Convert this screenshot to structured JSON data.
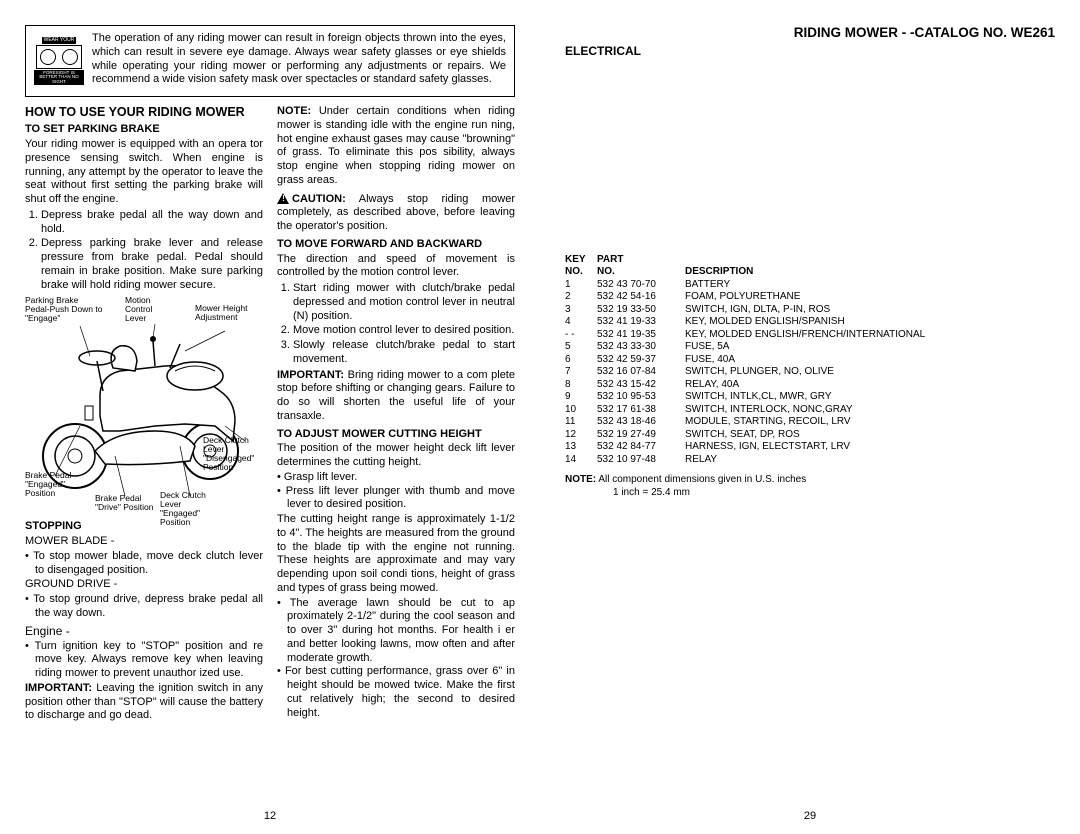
{
  "leftPage": {
    "warningBox": "The operation of any riding mower can  result in foreign objects thrown into the eyes, which can result in severe eye damage.  Always wear safety glasses or eye shields while operating your riding mower or performing any adjustments or repairs. We recommend a wide vision safety mask over spectacles or standard safety glasses.",
    "warningIconTop": "WEAR YOUR",
    "warningIconMid": "SAFETY GLASSES",
    "warningIconBot": "FORESIGHT IS BETTER THAN NO SIGHT",
    "col1": {
      "title": "HOW TO USE YOUR RIDING MOWER",
      "sub1": "To Set Parking Brake",
      "p1": "Your riding mower is equipped with an opera tor presence sensing switch.  When engine is running, any attempt by the operator to leave the seat without first setting the parking brake will shut off the engine.",
      "ol1_1": "Depress brake pedal all the way down and hold.",
      "ol1_2": "Depress parking brake lever and release pressure from brake pedal.  Pedal should remain in brake position.  Make sure parking brake will hold riding mower  secure.",
      "dlabels": {
        "l1": "Parking Brake Pedal-Push Down to \"Engage\"",
        "l2": "Motion Control Lever",
        "l3": "Mower Height Adjustment",
        "l4": "Deck Clutch Lever \"Disengaged\" Position",
        "l5": "Brake Pedal \"Engaged\" Position",
        "l6": "Brake Pedal \"Drive\" Position",
        "l7": "Deck Clutch Lever \"Engaged\" Position"
      },
      "sub2": "STOPPING",
      "p2": "MOWER BLADE -",
      "ul2_1": "To stop mower blade, move deck clutch lever to disengaged position.",
      "p3": "GROUND DRIVE -",
      "ul3_1": "To stop ground drive, depress brake pedal all the way down.",
      "sub3": "Engine -",
      "ul4_1": "Turn ignition key to \"STOP\" position and re move key.  Always remove key when leaving riding mower to prevent unauthor ized use.",
      "imp1": "IMPORTANT:",
      "imp1txt": "  Leaving the ignition switch in any position other than \"STOP\" will cause the battery to discharge and go dead."
    },
    "col2": {
      "notehead": "NOTE:",
      "note1": " Under certain conditions when riding mower is standing idle with the engine run ning, hot engine exhaust gases may cause \"browning\" of grass.  To eliminate this pos sibility, always stop engine when stopping riding mower on grass areas.",
      "cauthead": "CAUTION:",
      "caut1": "  Always stop riding mower completely, as described above, before leaving the operator's position.",
      "sub1": "To Move Forward And Backward",
      "p1": "The direction and speed of movement  is controlled by the motion control lever.",
      "ol1_1": "Start riding mower with clutch/brake pedal depressed and motion control lever in neutral (N) position.",
      "ol1_2": "Move motion control lever to desired position.",
      "ol1_3": "Slowly release clutch/brake pedal to start movement.",
      "imphead": "IMPORTANT:",
      "imp1": "  Bring riding mower to a com plete stop before shifting or changing gears.  Failure to do so will shorten the useful life of your transaxle.",
      "sub2": "To Adjust Mower Cutting Height",
      "p2": "The position of the mower height deck lift lever determines the cutting height.",
      "ul1_1": "Grasp lift lever.",
      "ul1_2": "Press lift lever plunger with thumb and move lever to desired position.",
      "p3": "The cutting  height range is approximately 1-1/2 to   4\".  The heights are measured from the ground to the blade tip with the engine not running.  These heights are approximate and may vary depending upon soil condi tions, height of grass and types of grass being mowed.",
      "ul2_1": "The average lawn should be cut to ap proximately 2-1/2\" during the cool season and to over 3\" during hot months.  For health i er and better looking lawns, mow often and after moderate growth.",
      "ul2_2": "For best cutting performance, grass over 6\" in height should be mowed twice.  Make the first cut relatively high; the second to desired height."
    },
    "pagenum": "12"
  },
  "rightPage": {
    "header1": "RIDING MOWER - -CATALOG NO.  WE261",
    "header2": "ELECTRICAL",
    "th": {
      "a": "KEY NO.",
      "b": "PART NO.",
      "c": "DESCRIPTION"
    },
    "rows": [
      {
        "a": "1",
        "b": "532 43 70-70",
        "c": "BATTERY"
      },
      {
        "a": "2",
        "b": "532 42 54-16",
        "c": "FOAM, POLYURETHANE"
      },
      {
        "a": "3",
        "b": "532 19 33-50",
        "c": "SWITCH, IGN, DLTA, P-IN, ROS"
      },
      {
        "a": "4",
        "b": "532 41 19-33",
        "c": "KEY, MOLDED ENGLISH/SPANISH"
      },
      {
        "a": "- -",
        "b": "532 41 19-35",
        "c": "KEY, MOLDED ENGLISH/FRENCH/INTERNATIONAL"
      },
      {
        "a": "5",
        "b": "532 43 33-30",
        "c": "FUSE, 5A"
      },
      {
        "a": "6",
        "b": "532 42 59-37",
        "c": "FUSE, 40A"
      },
      {
        "a": "7",
        "b": "532 16 07-84",
        "c": "SWITCH, PLUNGER, NO, OLIVE"
      },
      {
        "a": "8",
        "b": "532 43 15-42",
        "c": "RELAY, 40A"
      },
      {
        "a": "9",
        "b": "532 10 95-53",
        "c": "SWITCH, INTLK,CL, MWR, GRY"
      },
      {
        "a": "10",
        "b": "532 17 61-38",
        "c": "SWITCH, INTERLOCK, NONC,GRAY"
      },
      {
        "a": "11",
        "b": "532 43 18-46",
        "c": "MODULE, STARTING, RECOIL, LRV"
      },
      {
        "a": "12",
        "b": "532 19 27-49",
        "c": "SWITCH, SEAT, DP, ROS"
      },
      {
        "a": "13",
        "b": "532 42 84-77",
        "c": "HARNESS, IGN, ELECTSTART, LRV"
      },
      {
        "a": "14",
        "b": "532 10 97-48",
        "c": "RELAY"
      }
    ],
    "noteHead": "NOTE:",
    "noteBody": " All component dimensions given in U.S. inches",
    "noteConv": "1 inch = 25.4 mm",
    "pagenum": "29"
  }
}
